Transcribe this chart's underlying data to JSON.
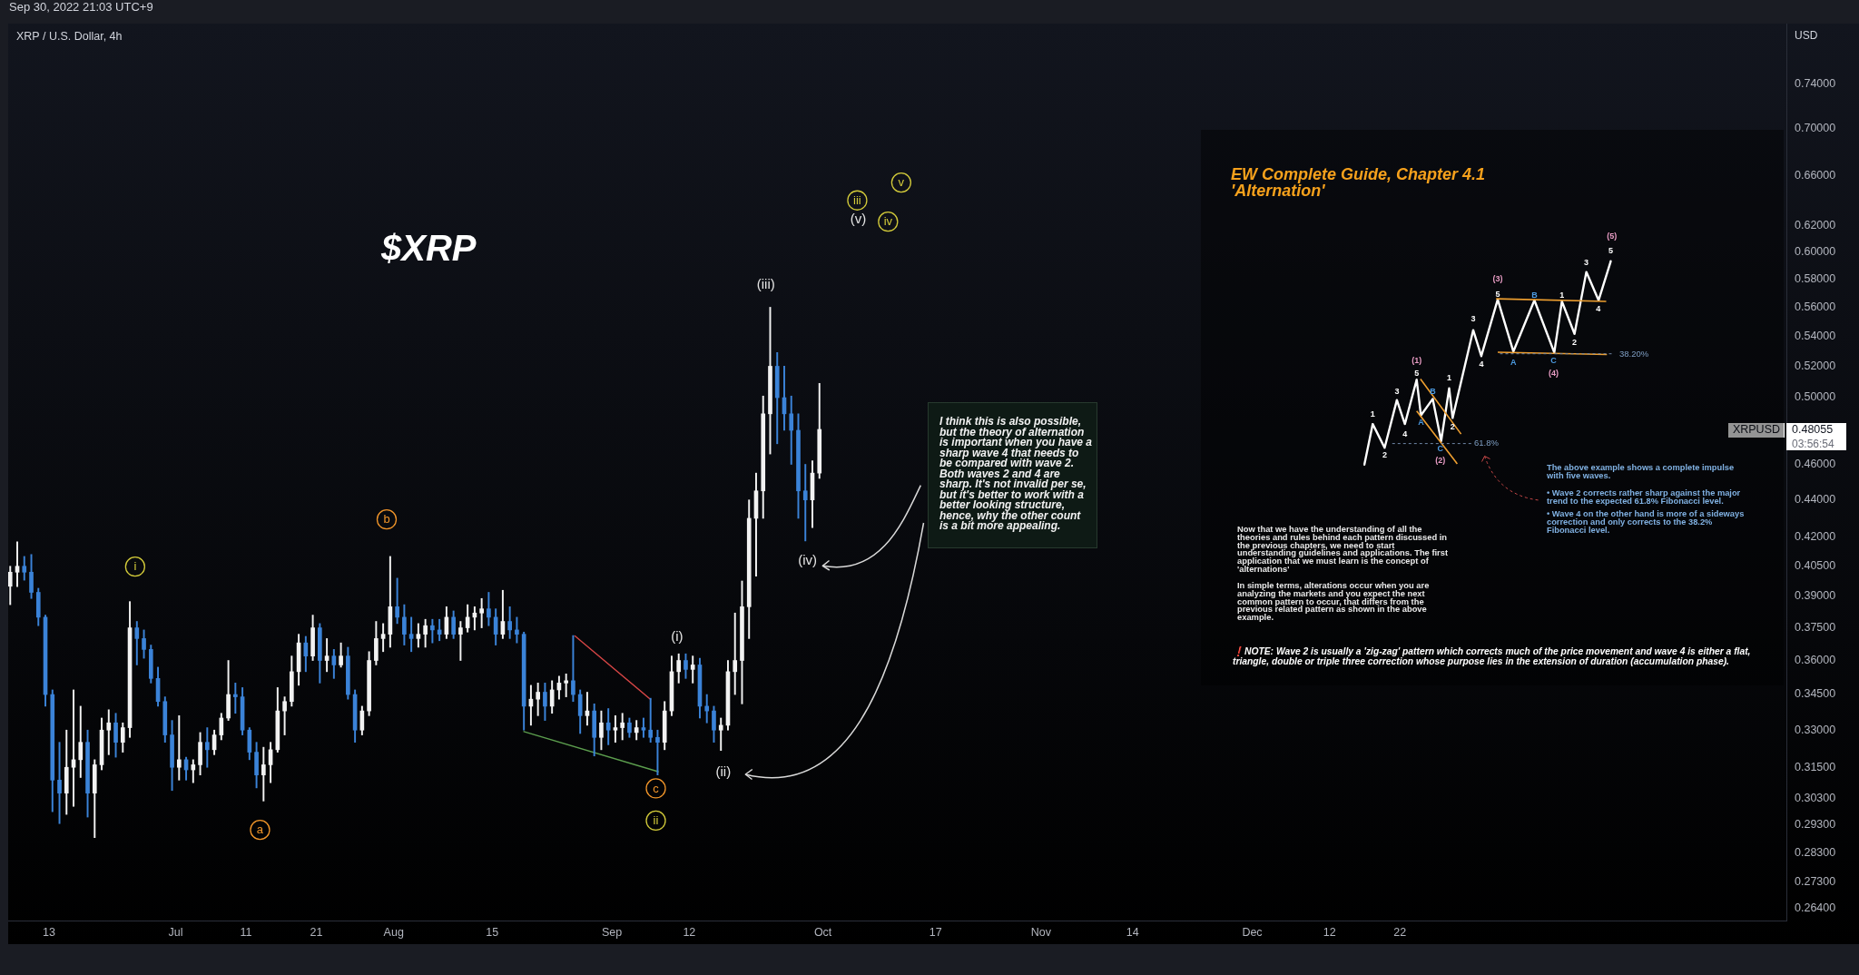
{
  "chart_data": [
    {
      "type": "candlestick",
      "title": "XRP / U.S. Dollar, 4h",
      "ylabel": "USD",
      "x": [
        "2022-06-07T12:00",
        "2022-06-08T12:00",
        "2022-06-09T12:00",
        "2022-06-10T12:00",
        "2022-06-11T12:00",
        "2022-06-12T12:00",
        "2022-06-13T12:00",
        "2022-06-14T12:00",
        "2022-06-15T12:00",
        "2022-06-16T12:00",
        "2022-06-17T12:00",
        "2022-06-18T12:00",
        "2022-06-19T12:00",
        "2022-06-20T12:00",
        "2022-06-21T12:00",
        "2022-06-22T12:00",
        "2022-06-23T12:00",
        "2022-06-24T12:00",
        "2022-06-25T12:00",
        "2022-06-26T12:00",
        "2022-06-27T12:00",
        "2022-06-28T12:00",
        "2022-06-29T12:00",
        "2022-06-30T12:00",
        "2022-07-01T12:00",
        "2022-07-02T12:00",
        "2022-07-03T12:00",
        "2022-07-04T12:00",
        "2022-07-05T12:00",
        "2022-07-06T12:00",
        "2022-07-07T12:00",
        "2022-07-08T12:00",
        "2022-07-09T12:00",
        "2022-07-10T12:00",
        "2022-07-11T12:00",
        "2022-07-12T12:00",
        "2022-07-13T12:00",
        "2022-07-14T12:00",
        "2022-07-15T12:00",
        "2022-07-16T12:00",
        "2022-07-17T12:00",
        "2022-07-18T12:00",
        "2022-07-19T12:00",
        "2022-07-20T12:00",
        "2022-07-21T12:00",
        "2022-07-22T12:00",
        "2022-07-23T12:00",
        "2022-07-24T12:00",
        "2022-07-25T12:00",
        "2022-07-26T12:00",
        "2022-07-27T12:00",
        "2022-07-28T12:00",
        "2022-07-29T12:00",
        "2022-07-30T12:00",
        "2022-07-31T12:00",
        "2022-08-01T12:00",
        "2022-08-02T12:00",
        "2022-08-03T12:00",
        "2022-08-04T12:00",
        "2022-08-05T12:00",
        "2022-08-06T12:00",
        "2022-08-07T12:00",
        "2022-08-08T12:00",
        "2022-08-09T12:00",
        "2022-08-10T12:00",
        "2022-08-11T12:00",
        "2022-08-12T12:00",
        "2022-08-13T12:00",
        "2022-08-14T12:00",
        "2022-08-15T12:00",
        "2022-08-16T12:00",
        "2022-08-17T12:00",
        "2022-08-18T12:00",
        "2022-08-19T12:00",
        "2022-08-20T12:00",
        "2022-08-21T12:00",
        "2022-08-22T12:00",
        "2022-08-23T12:00",
        "2022-08-24T12:00",
        "2022-08-25T12:00",
        "2022-08-26T12:00",
        "2022-08-27T12:00",
        "2022-08-28T12:00",
        "2022-08-29T12:00",
        "2022-08-30T12:00",
        "2022-08-31T12:00",
        "2022-09-01T12:00",
        "2022-09-02T12:00",
        "2022-09-03T12:00",
        "2022-09-04T12:00",
        "2022-09-05T12:00",
        "2022-09-06T12:00",
        "2022-09-07T12:00",
        "2022-09-08T12:00",
        "2022-09-09T12:00",
        "2022-09-10T12:00",
        "2022-09-11T12:00",
        "2022-09-12T12:00",
        "2022-09-13T12:00",
        "2022-09-14T12:00",
        "2022-09-15T12:00",
        "2022-09-16T12:00",
        "2022-09-17T12:00",
        "2022-09-18T12:00",
        "2022-09-19T12:00",
        "2022-09-20T12:00",
        "2022-09-21T12:00",
        "2022-09-22T12:00",
        "2022-09-23T12:00",
        "2022-09-24T12:00",
        "2022-09-25T12:00",
        "2022-09-26T12:00",
        "2022-09-27T12:00",
        "2022-09-28T12:00",
        "2022-09-29T12:00",
        "2022-09-30T12:00"
      ],
      "ohlc": [
        [
          0.395,
          0.405,
          0.386,
          0.402
        ],
        [
          0.402,
          0.4176,
          0.3948,
          0.405
        ],
        [
          0.405,
          0.41,
          0.398,
          0.402
        ],
        [
          0.402,
          0.411,
          0.389,
          0.392
        ],
        [
          0.392,
          0.394,
          0.376,
          0.38
        ],
        [
          0.38,
          0.381,
          0.34,
          0.345
        ],
        [
          0.345,
          0.347,
          0.298,
          0.31
        ],
        [
          0.31,
          0.325,
          0.2936,
          0.305
        ],
        [
          0.305,
          0.33,
          0.297,
          0.315
        ],
        [
          0.315,
          0.347,
          0.3,
          0.318
        ],
        [
          0.318,
          0.34,
          0.311,
          0.325
        ],
        [
          0.325,
          0.33,
          0.296,
          0.305
        ],
        [
          0.305,
          0.318,
          0.2885,
          0.316
        ],
        [
          0.316,
          0.335,
          0.314,
          0.33
        ],
        [
          0.33,
          0.3385,
          0.32,
          0.333
        ],
        [
          0.333,
          0.337,
          0.319,
          0.325
        ],
        [
          0.325,
          0.333,
          0.321,
          0.331
        ],
        [
          0.331,
          0.3875,
          0.327,
          0.375
        ],
        [
          0.375,
          0.378,
          0.358,
          0.37
        ],
        [
          0.37,
          0.374,
          0.361,
          0.365
        ],
        [
          0.365,
          0.367,
          0.35,
          0.352
        ],
        [
          0.352,
          0.357,
          0.34,
          0.342
        ],
        [
          0.342,
          0.344,
          0.325,
          0.328
        ],
        [
          0.328,
          0.334,
          0.306,
          0.315
        ],
        [
          0.315,
          0.336,
          0.31,
          0.318
        ],
        [
          0.318,
          0.319,
          0.31,
          0.314
        ],
        [
          0.314,
          0.318,
          0.309,
          0.316
        ],
        [
          0.316,
          0.329,
          0.312,
          0.325
        ],
        [
          0.325,
          0.331,
          0.315,
          0.322
        ],
        [
          0.322,
          0.33,
          0.32,
          0.328
        ],
        [
          0.328,
          0.337,
          0.326,
          0.335
        ],
        [
          0.335,
          0.36,
          0.334,
          0.345
        ],
        [
          0.345,
          0.35,
          0.337,
          0.344
        ],
        [
          0.344,
          0.348,
          0.328,
          0.33
        ],
        [
          0.33,
          0.331,
          0.318,
          0.321
        ],
        [
          0.321,
          0.325,
          0.307,
          0.312
        ],
        [
          0.312,
          0.323,
          0.302,
          0.316
        ],
        [
          0.316,
          0.325,
          0.309,
          0.322
        ],
        [
          0.322,
          0.348,
          0.321,
          0.338
        ],
        [
          0.338,
          0.344,
          0.328,
          0.342
        ],
        [
          0.342,
          0.362,
          0.34,
          0.355
        ],
        [
          0.355,
          0.372,
          0.349,
          0.368
        ],
        [
          0.368,
          0.371,
          0.355,
          0.362
        ],
        [
          0.362,
          0.381,
          0.36,
          0.375
        ],
        [
          0.375,
          0.377,
          0.35,
          0.36
        ],
        [
          0.36,
          0.37,
          0.355,
          0.362
        ],
        [
          0.362,
          0.365,
          0.352,
          0.358
        ],
        [
          0.358,
          0.368,
          0.357,
          0.362
        ],
        [
          0.362,
          0.366,
          0.343,
          0.345
        ],
        [
          0.345,
          0.347,
          0.325,
          0.33
        ],
        [
          0.33,
          0.34,
          0.328,
          0.338
        ],
        [
          0.338,
          0.364,
          0.336,
          0.36
        ],
        [
          0.36,
          0.378,
          0.358,
          0.37
        ],
        [
          0.37,
          0.377,
          0.364,
          0.372
        ],
        [
          0.372,
          0.41,
          0.366,
          0.385
        ],
        [
          0.385,
          0.399,
          0.377,
          0.38
        ],
        [
          0.38,
          0.386,
          0.367,
          0.372
        ],
        [
          0.372,
          0.38,
          0.364,
          0.37
        ],
        [
          0.37,
          0.377,
          0.366,
          0.372
        ],
        [
          0.372,
          0.379,
          0.366,
          0.376
        ],
        [
          0.376,
          0.379,
          0.368,
          0.374
        ],
        [
          0.374,
          0.379,
          0.369,
          0.372
        ],
        [
          0.372,
          0.385,
          0.37,
          0.38
        ],
        [
          0.38,
          0.383,
          0.37,
          0.372
        ],
        [
          0.372,
          0.378,
          0.36,
          0.375
        ],
        [
          0.375,
          0.386,
          0.373,
          0.38
        ],
        [
          0.38,
          0.385,
          0.374,
          0.382
        ],
        [
          0.382,
          0.389,
          0.375,
          0.384
        ],
        [
          0.384,
          0.392,
          0.376,
          0.38
        ],
        [
          0.38,
          0.384,
          0.367,
          0.372
        ],
        [
          0.372,
          0.393,
          0.37,
          0.378
        ],
        [
          0.378,
          0.385,
          0.37,
          0.374
        ],
        [
          0.374,
          0.38,
          0.368,
          0.372
        ],
        [
          0.372,
          0.373,
          0.33,
          0.34
        ],
        [
          0.34,
          0.349,
          0.332,
          0.343
        ],
        [
          0.343,
          0.35,
          0.336,
          0.346
        ],
        [
          0.346,
          0.35,
          0.334,
          0.34
        ],
        [
          0.34,
          0.351,
          0.337,
          0.347
        ],
        [
          0.347,
          0.353,
          0.343,
          0.35
        ],
        [
          0.35,
          0.354,
          0.344,
          0.351
        ],
        [
          0.351,
          0.3714,
          0.342,
          0.345
        ],
        [
          0.345,
          0.347,
          0.3286,
          0.336
        ],
        [
          0.336,
          0.346,
          0.332,
          0.338
        ],
        [
          0.338,
          0.341,
          0.3195,
          0.327
        ],
        [
          0.327,
          0.338,
          0.322,
          0.333
        ],
        [
          0.333,
          0.339,
          0.324,
          0.33
        ],
        [
          0.33,
          0.336,
          0.325,
          0.331
        ],
        [
          0.331,
          0.337,
          0.326,
          0.333
        ],
        [
          0.333,
          0.335,
          0.327,
          0.329
        ],
        [
          0.329,
          0.334,
          0.326,
          0.331
        ],
        [
          0.331,
          0.335,
          0.327,
          0.33
        ],
        [
          0.33,
          0.3434,
          0.325,
          0.327
        ],
        [
          0.327,
          0.33,
          0.312,
          0.325
        ],
        [
          0.325,
          0.342,
          0.322,
          0.338
        ],
        [
          0.338,
          0.362,
          0.336,
          0.355
        ],
        [
          0.355,
          0.363,
          0.35,
          0.36
        ],
        [
          0.36,
          0.363,
          0.352,
          0.356
        ],
        [
          0.356,
          0.362,
          0.35,
          0.358
        ],
        [
          0.358,
          0.361,
          0.335,
          0.34
        ],
        [
          0.34,
          0.345,
          0.333,
          0.338
        ],
        [
          0.338,
          0.34,
          0.325,
          0.33
        ],
        [
          0.33,
          0.335,
          0.3217,
          0.332
        ],
        [
          0.332,
          0.36,
          0.33,
          0.355
        ],
        [
          0.355,
          0.382,
          0.345,
          0.36
        ],
        [
          0.36,
          0.3976,
          0.341,
          0.385
        ],
        [
          0.385,
          0.44,
          0.37,
          0.43
        ],
        [
          0.43,
          0.455,
          0.4,
          0.445
        ],
        [
          0.445,
          0.501,
          0.43,
          0.49
        ],
        [
          0.49,
          0.5598,
          0.466,
          0.52
        ],
        [
          0.52,
          0.529,
          0.472,
          0.5
        ],
        [
          0.5,
          0.52,
          0.48,
          0.49
        ],
        [
          0.49,
          0.501,
          0.46,
          0.48
        ],
        [
          0.48,
          0.49,
          0.43,
          0.445
        ],
        [
          0.445,
          0.46,
          0.418,
          0.44
        ],
        [
          0.44,
          0.462,
          0.425,
          0.455
        ],
        [
          0.455,
          0.509,
          0.452,
          0.48055
        ]
      ],
      "colors": [
        "#f2f2f2",
        "#f2f2f2",
        "#3b83d8",
        "#3b83d8",
        "#3b83d8",
        "#3b83d8",
        "#3b83d8",
        "#3b83d8",
        "#f2f2f2",
        "#f2f2f2",
        "#f2f2f2",
        "#3b83d8",
        "#f2f2f2",
        "#f2f2f2",
        "#f2f2f2",
        "#3b83d8",
        "#f2f2f2",
        "#f2f2f2",
        "#3b83d8",
        "#3b83d8",
        "#3b83d8",
        "#3b83d8",
        "#3b83d8",
        "#3b83d8",
        "#f2f2f2",
        "#3b83d8",
        "#f2f2f2",
        "#f2f2f2",
        "#3b83d8",
        "#f2f2f2",
        "#f2f2f2",
        "#f2f2f2",
        "#3b83d8",
        "#3b83d8",
        "#3b83d8",
        "#3b83d8",
        "#f2f2f2",
        "#f2f2f2",
        "#f2f2f2",
        "#f2f2f2",
        "#f2f2f2",
        "#f2f2f2",
        "#3b83d8",
        "#f2f2f2",
        "#3b83d8",
        "#f2f2f2",
        "#3b83d8",
        "#f2f2f2",
        "#3b83d8",
        "#3b83d8",
        "#f2f2f2",
        "#f2f2f2",
        "#f2f2f2",
        "#f2f2f2",
        "#f2f2f2",
        "#3b83d8",
        "#3b83d8",
        "#3b83d8",
        "#f2f2f2",
        "#f2f2f2",
        "#3b83d8",
        "#3b83d8",
        "#f2f2f2",
        "#3b83d8",
        "#f2f2f2",
        "#f2f2f2",
        "#f2f2f2",
        "#f2f2f2",
        "#3b83d8",
        "#3b83d8",
        "#f2f2f2",
        "#3b83d8",
        "#3b83d8",
        "#3b83d8",
        "#f2f2f2",
        "#f2f2f2",
        "#3b83d8",
        "#f2f2f2",
        "#f2f2f2",
        "#f2f2f2",
        "#3b83d8",
        "#3b83d8",
        "#f2f2f2",
        "#3b83d8",
        "#f2f2f2",
        "#3b83d8",
        "#f2f2f2",
        "#f2f2f2",
        "#3b83d8",
        "#f2f2f2",
        "#3b83d8",
        "#3b83d8",
        "#3b83d8",
        "#f2f2f2",
        "#f2f2f2",
        "#f2f2f2",
        "#3b83d8",
        "#f2f2f2",
        "#3b83d8",
        "#3b83d8",
        "#3b83d8",
        "#f2f2f2",
        "#f2f2f2",
        "#f2f2f2",
        "#f2f2f2",
        "#f2f2f2",
        "#f2f2f2",
        "#f2f2f2",
        "#f2f2f2",
        "#3b83d8",
        "#3b83d8",
        "#3b83d8",
        "#3b83d8",
        "#3b83d8",
        "#f2f2f2",
        "#f2f2f2"
      ],
      "series": [
        {
          "type": "line",
          "x": [
            "2022-08-26T18:00",
            "2022-09-06T12:00"
          ],
          "values": [
            0.3712,
            0.3429
          ],
          "color": "#d64545"
        },
        {
          "type": "line",
          "x": [
            "2022-08-19T12:00",
            "2022-09-07T14:00"
          ],
          "values": [
            0.3294,
            0.3133
          ],
          "color": "#5c9e4e"
        }
      ],
      "xlim": [
        "2022-06-07T05:00",
        "2023-02-14T22:00"
      ],
      "xticks": [
        {
          "value": "2022-06-13",
          "label": "13"
        },
        {
          "value": "2022-07-01",
          "label": "Jul"
        },
        {
          "value": "2022-07-11",
          "label": "11"
        },
        {
          "value": "2022-07-21",
          "label": "21"
        },
        {
          "value": "2022-08-01",
          "label": "Aug"
        },
        {
          "value": "2022-08-15",
          "label": "15"
        },
        {
          "value": "2022-09-01",
          "label": "Sep"
        },
        {
          "value": "2022-09-12",
          "label": "12"
        },
        {
          "value": "2022-10-01",
          "label": "Oct"
        },
        {
          "value": "2022-10-17",
          "label": "17"
        },
        {
          "value": "2022-11-01",
          "label": "Nov"
        },
        {
          "value": "2022-11-14",
          "label": "14"
        },
        {
          "value": "2022-12-01",
          "label": "Dec"
        },
        {
          "value": "2022-12-12",
          "label": "12"
        },
        {
          "value": "2022-12-22",
          "label": "22"
        }
      ],
      "ylim": [
        0.2601,
        0.798
      ],
      "log": "y",
      "yticks": [
        {
          "value": 0.264,
          "label": "0.26400"
        },
        {
          "value": 0.273,
          "label": "0.27300"
        },
        {
          "value": 0.283,
          "label": "0.28300"
        },
        {
          "value": 0.293,
          "label": "0.29300"
        },
        {
          "value": 0.303,
          "label": "0.30300"
        },
        {
          "value": 0.315,
          "label": "0.31500"
        },
        {
          "value": 0.33,
          "label": "0.33000"
        },
        {
          "value": 0.345,
          "label": "0.34500"
        },
        {
          "value": 0.36,
          "label": "0.36000"
        },
        {
          "value": 0.375,
          "label": "0.37500"
        },
        {
          "value": 0.39,
          "label": "0.39000"
        },
        {
          "value": 0.405,
          "label": "0.40500"
        },
        {
          "value": 0.42,
          "label": "0.42000"
        },
        {
          "value": 0.44,
          "label": "0.44000"
        },
        {
          "value": 0.46,
          "label": "0.46000"
        },
        {
          "value": 0.5,
          "label": "0.50000"
        },
        {
          "value": 0.52,
          "label": "0.52000"
        },
        {
          "value": 0.54,
          "label": "0.54000"
        },
        {
          "value": 0.56,
          "label": "0.56000"
        },
        {
          "value": 0.58,
          "label": "0.58000"
        },
        {
          "value": 0.6,
          "label": "0.60000"
        },
        {
          "value": 0.62,
          "label": "0.62000"
        },
        {
          "value": 0.66,
          "label": "0.66000"
        },
        {
          "value": 0.7,
          "label": "0.70000"
        },
        {
          "value": 0.74,
          "label": "0.74000"
        }
      ],
      "annotations": [
        "Sep 30, 2022 21:03 UTC+9",
        "$XRP",
        "I think this is also possible, but the theory of alternation is important when you have a sharp wave 4 that needs to be compared with wave 2. Both waves 2 and 4 are sharp. It's not invalid per se, but it's better to work with a better looking structure, hence, why the other count is a bit more appealing.",
        "XRPUSD",
        "0.48055",
        "03:56:54",
        "(v)",
        {
          "text": "i",
          "x": "2022-06-25T06:00",
          "y": 0.4048
        },
        {
          "text": "ii",
          "x": "2022-09-07T06:00",
          "y": 0.2947
        },
        {
          "text": "iii",
          "x": "2022-10-05T21:00",
          "y": 0.6398
        },
        {
          "text": "iv",
          "x": "2022-10-10T06:00",
          "y": 0.623
        },
        {
          "text": "v",
          "x": "2022-10-12T03:00",
          "y": 0.6542
        },
        {
          "text": "a",
          "x": "2022-07-13T00:00",
          "y": 0.2913
        },
        {
          "text": "b",
          "x": "2022-07-31T00:00",
          "y": 0.4294
        },
        {
          "text": "c",
          "x": "2022-09-07T06:00",
          "y": 0.3068
        },
        {
          "text": "(i)",
          "x": "2022-09-10T12:00",
          "y": 0.363
        },
        {
          "text": "(ii)",
          "x": "2022-09-16T12:00",
          "y": 0.3217
        },
        {
          "text": "(iii)",
          "x": "2022-09-23T12:00",
          "y": 0.5598
        },
        {
          "text": "(iv)",
          "x": "2022-09-28T12:00",
          "y": 0.418
        }
      ]
    },
    {
      "type": "other",
      "title": "EW Complete Guide, Chapter 4.1",
      "subtitle": "'Alternation'",
      "annotations": [
        "The above example shows a complete impulse with five waves.",
        "• Wave 2 corrects rather sharp against the major trend to the expected 61.8% Fibonacci level.",
        "• Wave 4 on the other hand is more of a sideways correction and only corrects to the 38.2% Fibonacci level.",
        "Now that we have the understanding of all the theories and rules behind each pattern discussed in the previous chapters, we need to start understanding guidelines and applications. The first application that we must learn is the concept of 'alternations'",
        "In simple terms, alterations occur when you are analyzing the markets and you expect the next common pattern to occur, that differs from the previous related pattern as shown in the above example.",
        "❗NOTE: Wave 2 is usually a 'zig-zag' pattern which corrects much of the price movement and wave 4 is either a flat, triangle, double or triple three correction whose purpose lies in the extension of duration (accumulation phase).",
        "61.8%",
        "38.20%",
        "1",
        "2",
        "3",
        "4",
        "5",
        "(1)",
        "A",
        "B",
        "C",
        "(2)",
        "1",
        "2",
        "3",
        "4",
        "5",
        "(3)",
        "A",
        "B",
        "C",
        "(4)",
        "1",
        "2",
        "3",
        "4",
        "5",
        "(5)"
      ]
    }
  ]
}
